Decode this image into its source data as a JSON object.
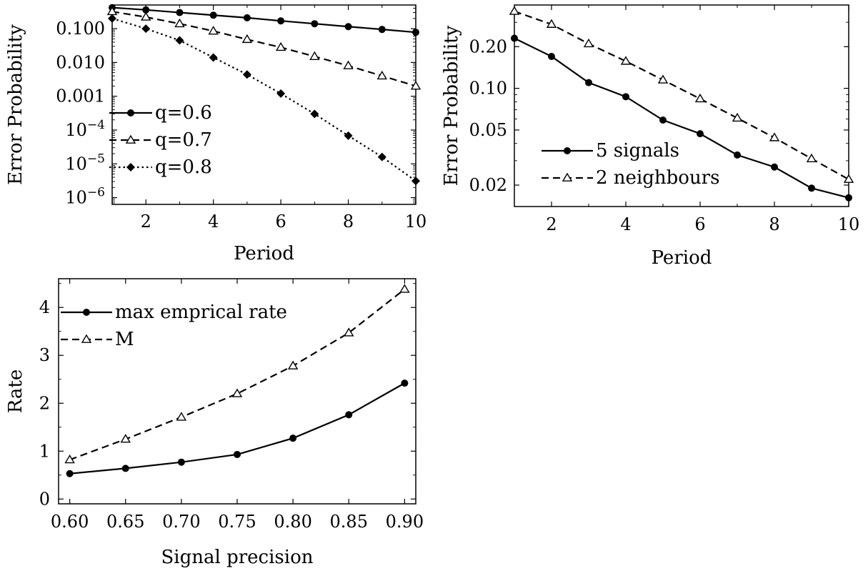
{
  "chart_data": [
    {
      "type": "line",
      "yscale": "log",
      "xlabel": "Period",
      "ylabel": "Error Probability",
      "xlim": [
        1,
        10
      ],
      "ylim_log10": [
        -6.2,
        -0.3
      ],
      "x_ticks": [
        2,
        4,
        6,
        8,
        10
      ],
      "y_ticks": [
        {
          "value": 0.1,
          "base": "0.100",
          "sup": ""
        },
        {
          "value": 0.01,
          "base": "0.010",
          "sup": ""
        },
        {
          "value": 0.001,
          "base": "0.001",
          "sup": ""
        },
        {
          "value": 0.0001,
          "base": "10",
          "sup": "−4"
        },
        {
          "value": 1e-05,
          "base": "10",
          "sup": "−5"
        },
        {
          "value": 1e-06,
          "base": "10",
          "sup": "−6"
        }
      ],
      "legend_position": "bottom-left",
      "x": [
        1,
        2,
        3,
        4,
        5,
        6,
        7,
        8,
        9,
        10
      ],
      "series": [
        {
          "name": "q=0.6",
          "marker": "circle",
          "dash": "solid",
          "values": [
            0.42,
            0.36,
            0.3,
            0.25,
            0.21,
            0.17,
            0.14,
            0.115,
            0.095,
            0.078
          ]
        },
        {
          "name": "q=0.7",
          "marker": "triangle",
          "dash": "dashed",
          "values": [
            0.32,
            0.22,
            0.14,
            0.085,
            0.048,
            0.028,
            0.015,
            0.008,
            0.004,
            0.002
          ]
        },
        {
          "name": "q=0.8",
          "marker": "diamond",
          "dash": "dotted",
          "values": [
            0.2,
            0.1,
            0.045,
            0.014,
            0.0044,
            0.0012,
            0.0003,
            6.8e-05,
            1.6e-05,
            3.1e-06
          ]
        }
      ]
    },
    {
      "type": "line",
      "yscale": "log",
      "xlabel": "Period",
      "ylabel": "Error Probability",
      "xlim": [
        1,
        10
      ],
      "ylim": [
        0.014,
        0.4
      ],
      "x_ticks": [
        2,
        4,
        6,
        8,
        10
      ],
      "y_ticks": [
        {
          "value": 0.2,
          "base": "0.20",
          "sup": ""
        },
        {
          "value": 0.1,
          "base": "0.10",
          "sup": ""
        },
        {
          "value": 0.05,
          "base": "0.05",
          "sup": ""
        },
        {
          "value": 0.02,
          "base": "0.02",
          "sup": ""
        }
      ],
      "legend_position": "bottom-left",
      "x": [
        1,
        2,
        3,
        4,
        5,
        6,
        7,
        8,
        9,
        10
      ],
      "series": [
        {
          "name": "5 signals",
          "marker": "circle",
          "dash": "solid",
          "values": [
            0.23,
            0.17,
            0.11,
            0.087,
            0.059,
            0.047,
            0.033,
            0.027,
            0.019,
            0.0162
          ]
        },
        {
          "name": "2 neighbours",
          "marker": "triangle",
          "dash": "dashed",
          "values": [
            0.36,
            0.29,
            0.21,
            0.157,
            0.115,
            0.084,
            0.061,
            0.044,
            0.031,
            0.022
          ]
        }
      ]
    },
    {
      "type": "line",
      "yscale": "linear",
      "xlabel": "Signal precision",
      "ylabel": "Rate",
      "xlim": [
        0.59,
        0.91
      ],
      "ylim": [
        -0.1,
        4.6
      ],
      "x_ticks": [
        "0.60",
        "0.65",
        "0.70",
        "0.75",
        "0.80",
        "0.85",
        "0.90"
      ],
      "y_ticks": [
        0,
        1,
        2,
        3,
        4
      ],
      "legend_position": "top-left",
      "x": [
        0.6,
        0.65,
        0.7,
        0.75,
        0.8,
        0.85,
        0.9
      ],
      "series": [
        {
          "name": "max emprical rate",
          "marker": "circle",
          "dash": "solid",
          "values": [
            0.53,
            0.64,
            0.77,
            0.93,
            1.27,
            1.76,
            2.42
          ]
        },
        {
          "name": "M",
          "marker": "triangle",
          "dash": "dashed",
          "values": [
            0.82,
            1.25,
            1.71,
            2.2,
            2.78,
            3.47,
            4.38
          ]
        }
      ]
    }
  ]
}
